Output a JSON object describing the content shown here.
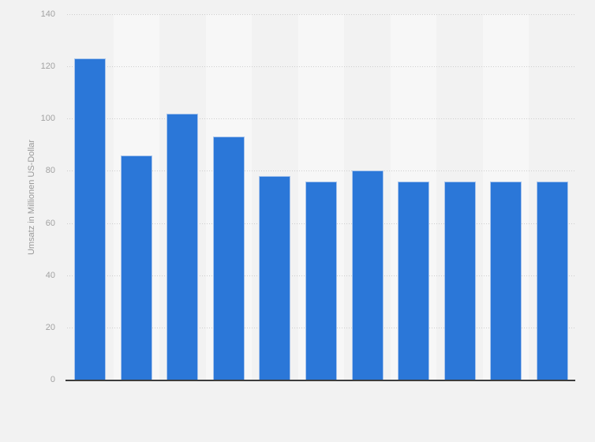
{
  "colors": {
    "page_bg": "#f2f2f2",
    "plot_band": "#f7f7f7",
    "grid_line": "#cdcdcd",
    "axis_line": "#3d3d3d",
    "tick_label": "#a2a2a2",
    "axis_title": "#999999",
    "bar_fill": "#2b77d8",
    "bar_border": "#a9c5ec"
  },
  "chart_data": {
    "type": "bar",
    "ylabel": "Umsatz in Millionen US-Dollar",
    "values": [
      123,
      86,
      102,
      93,
      78,
      76,
      80,
      76,
      76,
      76,
      76
    ],
    "yticks": [
      0,
      20,
      40,
      60,
      80,
      100,
      120,
      140
    ],
    "ylim": [
      0,
      140
    ],
    "grid": true,
    "legend": "none",
    "x_tick_labels_visible": false,
    "plot_background": "alternating-vertical-bands"
  }
}
